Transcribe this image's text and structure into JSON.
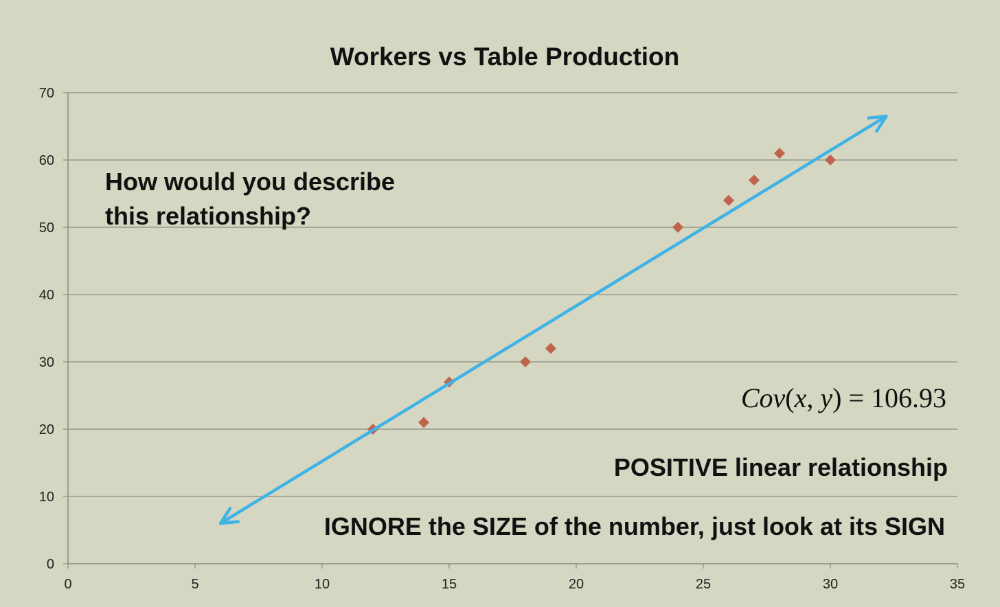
{
  "chart_data": {
    "type": "scatter",
    "title": "Workers vs Table Production",
    "xlim": [
      0,
      35
    ],
    "ylim": [
      0,
      70
    ],
    "x_ticks": [
      0,
      5,
      10,
      15,
      20,
      25,
      30,
      35
    ],
    "y_ticks": [
      0,
      10,
      20,
      30,
      40,
      50,
      60,
      70
    ],
    "grid": "horizontal",
    "series": [
      {
        "x": [
          12,
          14,
          15,
          18,
          19,
          24,
          26,
          27,
          28,
          30
        ],
        "y": [
          20,
          21,
          27,
          30,
          32,
          50,
          54,
          57,
          61,
          60
        ],
        "color": "#c0634c",
        "marker": "diamond"
      }
    ],
    "trend_arrow": {
      "from": [
        6,
        6
      ],
      "to": [
        32.2,
        66.5
      ],
      "color": "#3db3e6",
      "double_headed": true
    }
  },
  "annotations": {
    "question_line1": "How would you describe",
    "question_line2": "this relationship?",
    "cov_func": "Cov",
    "cov_open": "(",
    "cov_x": "x",
    "cov_comma": ", ",
    "cov_y": "y",
    "cov_close": ")",
    "cov_eq": " = ",
    "cov_value": "106.93",
    "positive": "POSITIVE linear relationship",
    "ignore": "IGNORE the SIZE of the number, just look at its SIGN"
  }
}
